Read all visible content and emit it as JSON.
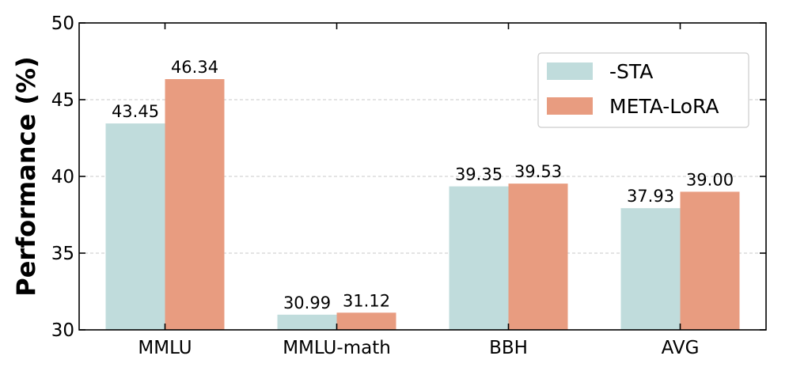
{
  "chart_data": {
    "type": "bar",
    "ylabel": "Performance (%)",
    "xlabel": "",
    "title": "",
    "ylim": [
      30,
      50
    ],
    "yticks": [
      30,
      35,
      40,
      45,
      50
    ],
    "grid": "horizontal dashed",
    "legend_placement": "top-right",
    "categories": [
      "MMLU",
      "MMLU-math",
      "BBH",
      "AVG"
    ],
    "series": [
      {
        "name": "-STA",
        "color": "#c0dcdc",
        "values": [
          43.45,
          30.99,
          39.35,
          37.93
        ],
        "labels": [
          "43.45",
          "30.99",
          "39.35",
          "37.93"
        ]
      },
      {
        "name": "META-LoRA",
        "color": "#e89c80",
        "values": [
          46.34,
          31.12,
          39.53,
          39.0
        ],
        "labels": [
          "46.34",
          "31.12",
          "39.53",
          "39.00"
        ]
      }
    ]
  }
}
